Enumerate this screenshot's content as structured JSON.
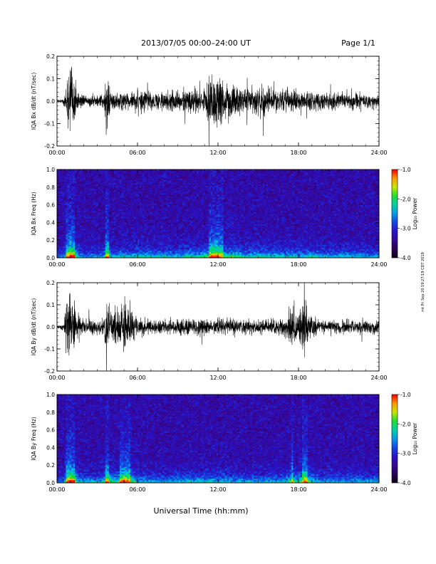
{
  "header": {
    "title": "2013/07/05   00:00–24:00 UT",
    "page": "Page 1/1"
  },
  "side_note": "mt Fri Sep 20 19:27:19 CDT 2019",
  "x_axis": {
    "label": "Universal Time (hh:mm)",
    "ticks": [
      "00:00",
      "06:00",
      "12:00",
      "18:00",
      "24:00"
    ]
  },
  "colorbar": {
    "label": "Log₁₀ Power",
    "ticks": [
      "-1.0",
      "-2.0",
      "-3.0",
      "-4.0"
    ],
    "range": [
      -4.0,
      -1.0
    ]
  },
  "colors": {
    "trace": "#000000",
    "spec_low": "#000000",
    "spec_high": "#ff0000"
  },
  "chart_data": [
    {
      "type": "line",
      "ylabel": "IQA Bx dB/dt (nT/sec)",
      "xlim_hours": [
        0,
        24
      ],
      "ylim": [
        -0.2,
        0.2
      ],
      "yticks": [
        "-0.2",
        "-0.1",
        "0.0",
        "0.1",
        "0.2"
      ],
      "envelope": {
        "x_hours": [
          0.0,
          0.5,
          0.75,
          1.0,
          1.25,
          1.5,
          2.0,
          2.5,
          3.0,
          3.5,
          3.75,
          4.0,
          4.5,
          5.0,
          5.5,
          6.0,
          7.0,
          8.0,
          9.0,
          10.0,
          10.5,
          11.0,
          11.5,
          12.0,
          12.5,
          13.0,
          14.0,
          15.0,
          16.0,
          17.0,
          18.0,
          19.0,
          20.0,
          21.0,
          22.0,
          23.0,
          24.0
        ],
        "amplitude": [
          0.01,
          0.02,
          0.18,
          0.22,
          0.2,
          0.08,
          0.03,
          0.04,
          0.04,
          0.05,
          0.22,
          0.06,
          0.06,
          0.08,
          0.05,
          0.09,
          0.07,
          0.07,
          0.07,
          0.1,
          0.08,
          0.09,
          0.2,
          0.22,
          0.12,
          0.13,
          0.08,
          0.1,
          0.08,
          0.08,
          0.07,
          0.07,
          0.06,
          0.06,
          0.06,
          0.05,
          0.05
        ]
      }
    },
    {
      "type": "heatmap",
      "ylabel": "IQA Bx Freq (Hz)",
      "xlim_hours": [
        0,
        24
      ],
      "ylim": [
        0.0,
        1.0
      ],
      "yticks": [
        "0.0",
        "0.2",
        "0.4",
        "0.6",
        "0.8",
        "1.0"
      ],
      "zlim": [
        -4.0,
        -1.0
      ]
    },
    {
      "type": "line",
      "ylabel": "IQA By dB/dt (nT/sec)",
      "xlim_hours": [
        0,
        24
      ],
      "ylim": [
        -0.2,
        0.2
      ],
      "yticks": [
        "-0.2",
        "-0.1",
        "0.0",
        "0.1",
        "0.2"
      ],
      "envelope": {
        "x_hours": [
          0.0,
          0.5,
          0.75,
          1.0,
          1.25,
          1.5,
          2.0,
          2.5,
          3.0,
          3.5,
          3.75,
          4.0,
          4.5,
          5.0,
          5.5,
          6.0,
          7.0,
          8.0,
          9.0,
          10.0,
          11.0,
          12.0,
          13.0,
          14.0,
          15.0,
          16.0,
          17.0,
          17.5,
          18.0,
          18.5,
          19.0,
          19.5,
          20.0,
          21.0,
          22.0,
          23.0,
          24.0
        ],
        "amplitude": [
          0.01,
          0.03,
          0.2,
          0.22,
          0.2,
          0.09,
          0.05,
          0.06,
          0.05,
          0.07,
          0.22,
          0.12,
          0.12,
          0.2,
          0.15,
          0.07,
          0.05,
          0.05,
          0.06,
          0.07,
          0.06,
          0.07,
          0.06,
          0.05,
          0.05,
          0.06,
          0.06,
          0.16,
          0.1,
          0.2,
          0.09,
          0.05,
          0.05,
          0.05,
          0.05,
          0.05,
          0.05
        ]
      }
    },
    {
      "type": "heatmap",
      "ylabel": "IQA By Freq (Hz)",
      "xlim_hours": [
        0,
        24
      ],
      "ylim": [
        0.0,
        1.0
      ],
      "yticks": [
        "0.0",
        "0.2",
        "0.4",
        "0.6",
        "0.8",
        "1.0"
      ],
      "zlim": [
        -4.0,
        -1.0
      ]
    }
  ]
}
